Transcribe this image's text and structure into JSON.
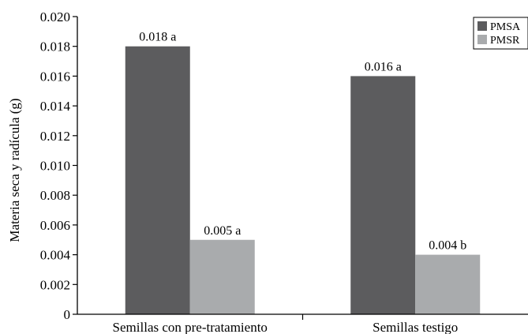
{
  "chart_data": {
    "type": "bar",
    "title": "",
    "xlabel": "",
    "ylabel": "Materia seca y radícula (g)",
    "ylim": [
      0,
      0.02
    ],
    "yticks": [
      "0",
      "0.002",
      "0.004",
      "0.006",
      "0.008",
      "0.010",
      "0.012",
      "0.014",
      "0.016",
      "0.018",
      "0.020"
    ],
    "categories": [
      "Semillas con pre-tratamiento",
      "Semillas testigo"
    ],
    "series": [
      {
        "name": "PMSA",
        "color": "#5c5c5e",
        "values": [
          0.018,
          0.016
        ],
        "labels": [
          "0.018 a",
          "0.016 a"
        ]
      },
      {
        "name": "PMSR",
        "color": "#a9abad",
        "values": [
          0.005,
          0.004
        ],
        "labels": [
          "0.005 a",
          "0.004 b"
        ]
      }
    ],
    "grid": false,
    "legend": "top-right"
  }
}
